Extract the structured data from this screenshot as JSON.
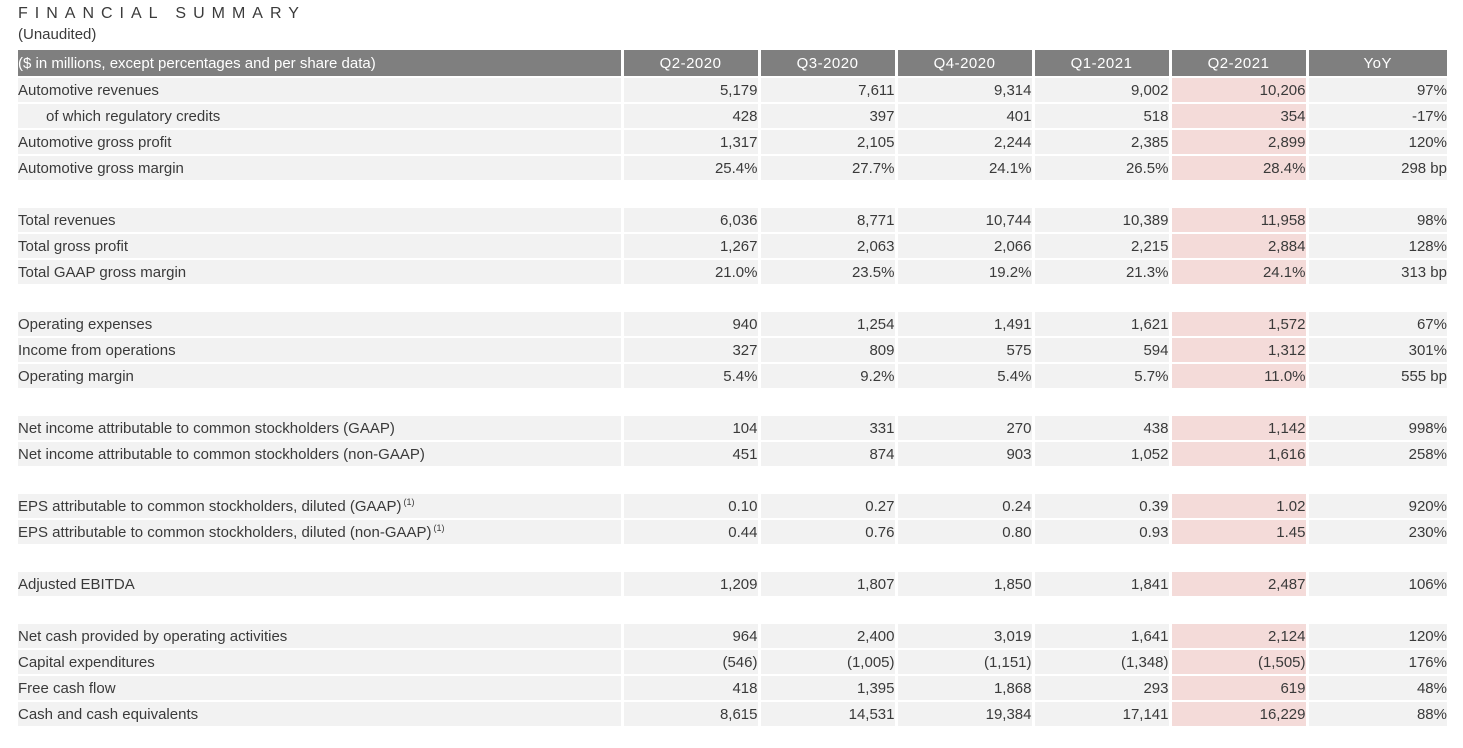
{
  "page": {
    "title": "FINANCIAL SUMMARY",
    "subtitle": "(Unaudited)"
  },
  "colors": {
    "header_bg": "#7f7f7f",
    "header_text": "#ffffff",
    "row_bg": "#f2f2f2",
    "highlight_bg": "#f4dbd9",
    "text": "#3a3a3a"
  },
  "table": {
    "label_header": "($ in millions, except percentages and per share data)",
    "columns": [
      "Q2-2020",
      "Q3-2020",
      "Q4-2020",
      "Q1-2021",
      "Q2-2021",
      "YoY"
    ],
    "highlight_column": "Q2-2021",
    "highlight_column_index": 4,
    "sections": [
      {
        "rows": [
          {
            "label": "Automotive revenues",
            "values": [
              "5,179",
              "7,611",
              "9,314",
              "9,002",
              "10,206",
              "97%"
            ]
          },
          {
            "label": "of which regulatory credits",
            "indent": true,
            "values": [
              "428",
              "397",
              "401",
              "518",
              "354",
              "-17%"
            ]
          },
          {
            "label": "Automotive gross profit",
            "values": [
              "1,317",
              "2,105",
              "2,244",
              "2,385",
              "2,899",
              "120%"
            ]
          },
          {
            "label": "Automotive gross margin",
            "values": [
              "25.4%",
              "27.7%",
              "24.1%",
              "26.5%",
              "28.4%",
              "298 bp"
            ]
          }
        ]
      },
      {
        "rows": [
          {
            "label": "Total revenues",
            "values": [
              "6,036",
              "8,771",
              "10,744",
              "10,389",
              "11,958",
              "98%"
            ]
          },
          {
            "label": "Total gross profit",
            "values": [
              "1,267",
              "2,063",
              "2,066",
              "2,215",
              "2,884",
              "128%"
            ]
          },
          {
            "label": "Total GAAP gross margin",
            "values": [
              "21.0%",
              "23.5%",
              "19.2%",
              "21.3%",
              "24.1%",
              "313 bp"
            ]
          }
        ]
      },
      {
        "rows": [
          {
            "label": "Operating expenses",
            "values": [
              "940",
              "1,254",
              "1,491",
              "1,621",
              "1,572",
              "67%"
            ]
          },
          {
            "label": "Income from operations",
            "values": [
              "327",
              "809",
              "575",
              "594",
              "1,312",
              "301%"
            ]
          },
          {
            "label": "Operating margin",
            "values": [
              "5.4%",
              "9.2%",
              "5.4%",
              "5.7%",
              "11.0%",
              "555 bp"
            ]
          }
        ]
      },
      {
        "rows": [
          {
            "label": "Net income attributable to common stockholders (GAAP)",
            "values": [
              "104",
              "331",
              "270",
              "438",
              "1,142",
              "998%"
            ]
          },
          {
            "label": "Net income attributable to common stockholders (non-GAAP)",
            "values": [
              "451",
              "874",
              "903",
              "1,052",
              "1,616",
              "258%"
            ]
          }
        ]
      },
      {
        "rows": [
          {
            "label": "EPS attributable to common stockholders, diluted (GAAP)",
            "sup": "(1)",
            "values": [
              "0.10",
              "0.27",
              "0.24",
              "0.39",
              "1.02",
              "920%"
            ]
          },
          {
            "label": "EPS attributable to common stockholders, diluted (non-GAAP)",
            "sup": "(1)",
            "values": [
              "0.44",
              "0.76",
              "0.80",
              "0.93",
              "1.45",
              "230%"
            ]
          }
        ]
      },
      {
        "rows": [
          {
            "label": "Adjusted EBITDA",
            "values": [
              "1,209",
              "1,807",
              "1,850",
              "1,841",
              "2,487",
              "106%"
            ]
          }
        ]
      },
      {
        "rows": [
          {
            "label": "Net cash provided by operating activities",
            "values": [
              "964",
              "2,400",
              "3,019",
              "1,641",
              "2,124",
              "120%"
            ]
          },
          {
            "label": "Capital expenditures",
            "values": [
              "(546)",
              "(1,005)",
              "(1,151)",
              "(1,348)",
              "(1,505)",
              "176%"
            ]
          },
          {
            "label": "Free cash flow",
            "values": [
              "418",
              "1,395",
              "1,868",
              "293",
              "619",
              "48%"
            ]
          },
          {
            "label": "Cash and cash equivalents",
            "values": [
              "8,615",
              "14,531",
              "19,384",
              "17,141",
              "16,229",
              "88%"
            ]
          }
        ]
      }
    ]
  }
}
